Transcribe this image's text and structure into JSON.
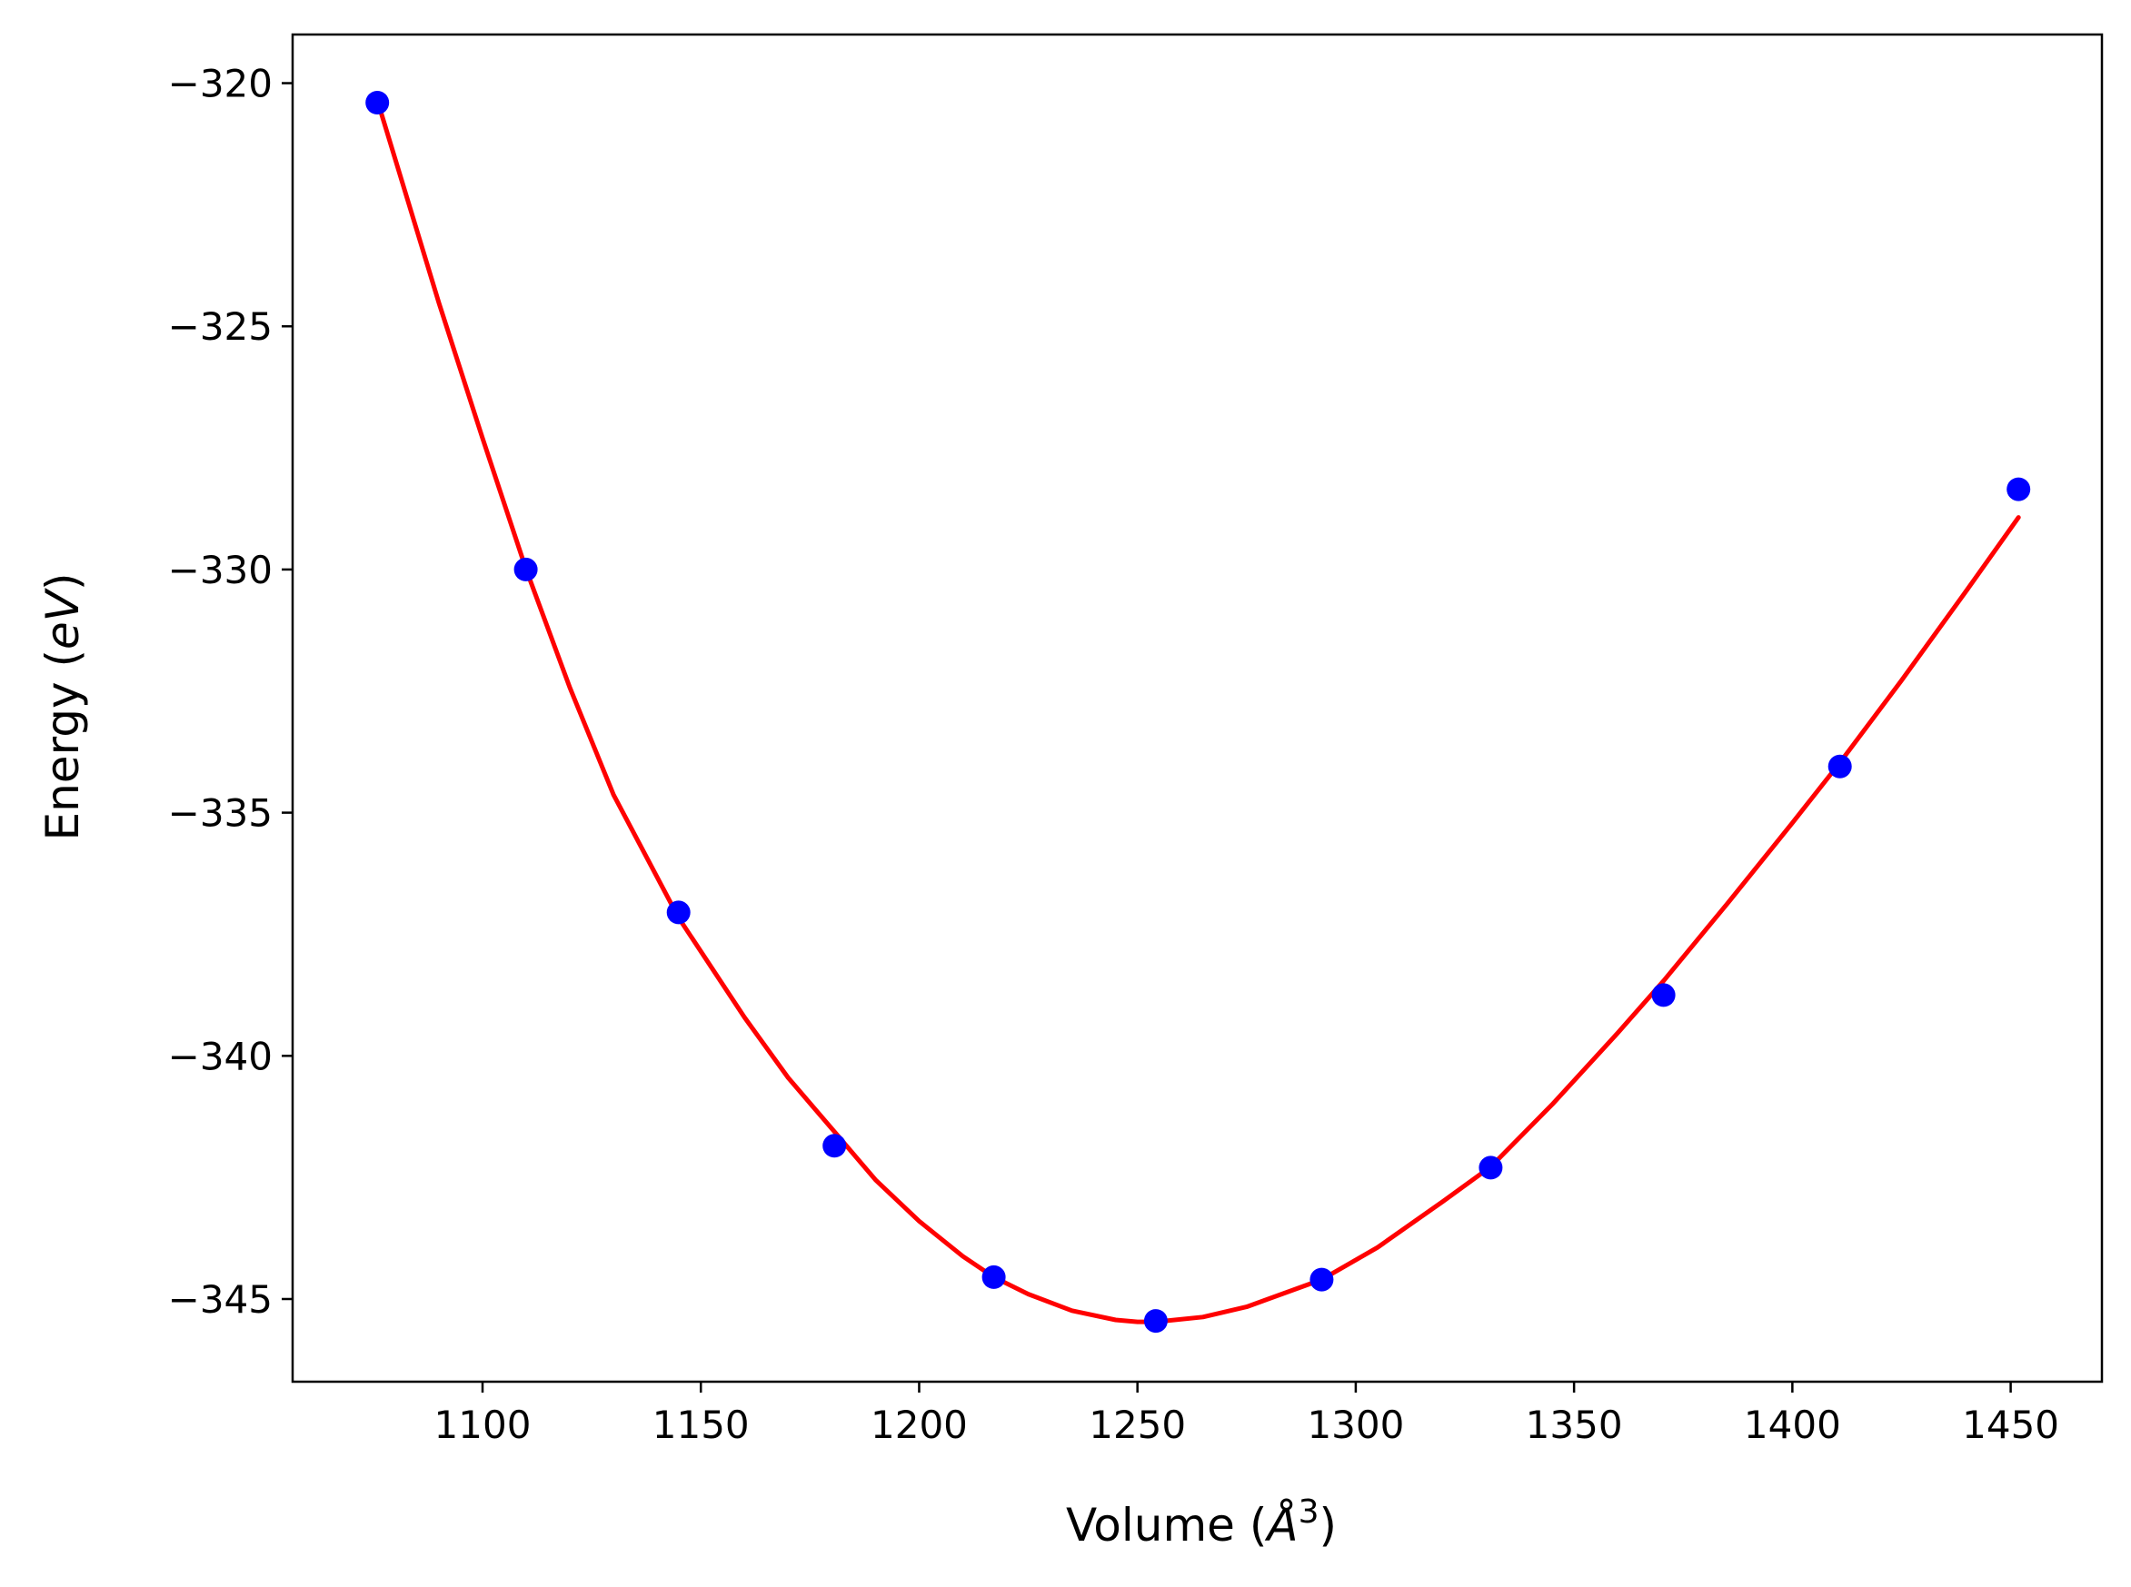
{
  "chart_data": {
    "type": "scatter",
    "title": "",
    "xlabel": {
      "main": "Volume (",
      "unit_letter": "Å",
      "superscript": "3",
      "close": ")"
    },
    "ylabel": {
      "main": "Energy (",
      "unit": "eV",
      "close": ")"
    },
    "xlim": [
      1056.5,
      1470.9
    ],
    "ylim": [
      -346.7,
      -319.0
    ],
    "xticks": [
      1100,
      1150,
      1200,
      1250,
      1300,
      1350,
      1400,
      1450
    ],
    "xtick_labels": [
      "1100",
      "1150",
      "1200",
      "1250",
      "1300",
      "1350",
      "1400",
      "1450"
    ],
    "yticks": [
      -320,
      -325,
      -330,
      -335,
      -340,
      -345
    ],
    "ytick_labels": [
      "−320",
      "−325",
      "−330",
      "−335",
      "−340",
      "−345"
    ],
    "grid": false,
    "series": [
      {
        "kind": "points",
        "color": "#0000ff",
        "x": [
          1075.9,
          1109.9,
          1144.9,
          1180.6,
          1217.1,
          1254.2,
          1292.2,
          1330.9,
          1370.5,
          1410.9,
          1451.8
        ],
        "y": [
          -320.4,
          -330.0,
          -337.05,
          -341.85,
          -344.55,
          -345.45,
          -344.6,
          -342.3,
          -338.75,
          -334.05,
          -328.35
        ]
      },
      {
        "kind": "fit-curve",
        "color": "#ff0000",
        "x": [
          1075.9,
          1090,
          1100,
          1109.9,
          1120,
          1130,
          1144.9,
          1160,
          1170,
          1180.6,
          1190,
          1200,
          1210,
          1217.1,
          1225,
          1235,
          1245,
          1250,
          1254.2,
          1265,
          1275,
          1292.2,
          1305,
          1320,
          1330.9,
          1345,
          1360,
          1370.5,
          1385,
          1400,
          1410.9,
          1425,
          1440,
          1451.8
        ],
        "y": [
          -320.35,
          -324.52,
          -327.3,
          -329.98,
          -332.43,
          -334.63,
          -337.16,
          -339.21,
          -340.45,
          -341.56,
          -342.55,
          -343.4,
          -344.12,
          -344.55,
          -344.9,
          -345.24,
          -345.43,
          -345.47,
          -345.47,
          -345.37,
          -345.16,
          -344.6,
          -343.94,
          -342.99,
          -342.28,
          -341.0,
          -339.53,
          -338.46,
          -336.88,
          -335.21,
          -333.97,
          -332.28,
          -330.42,
          -328.93
        ]
      }
    ]
  }
}
